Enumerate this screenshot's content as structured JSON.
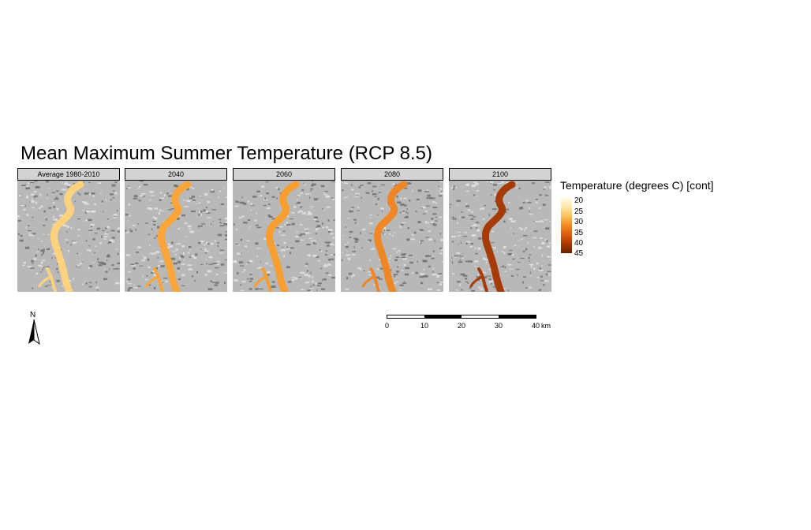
{
  "title": "Mean Maximum Summer Temperature (RCP 8.5)",
  "panels": [
    {
      "label": "Average 1980-2010",
      "river_color": "#fcd27e"
    },
    {
      "label": "2040",
      "river_color": "#f9a53a"
    },
    {
      "label": "2060",
      "river_color": "#f79e30"
    },
    {
      "label": "2080",
      "river_color": "#f08726"
    },
    {
      "label": "2100",
      "river_color": "#a53c08"
    }
  ],
  "legend": {
    "title": "Temperature (degrees C) [cont]",
    "ticks": [
      "20",
      "25",
      "30",
      "35",
      "40",
      "45"
    ],
    "colors": [
      "#fffbe6",
      "#fde7a8",
      "#fbbf5c",
      "#f28a24",
      "#d95b0e",
      "#a83a04",
      "#6b2002"
    ]
  },
  "scale_bar": {
    "labels": [
      "0",
      "10",
      "20",
      "30",
      "40"
    ],
    "unit": "km"
  },
  "north_arrow": {
    "label": "N"
  }
}
